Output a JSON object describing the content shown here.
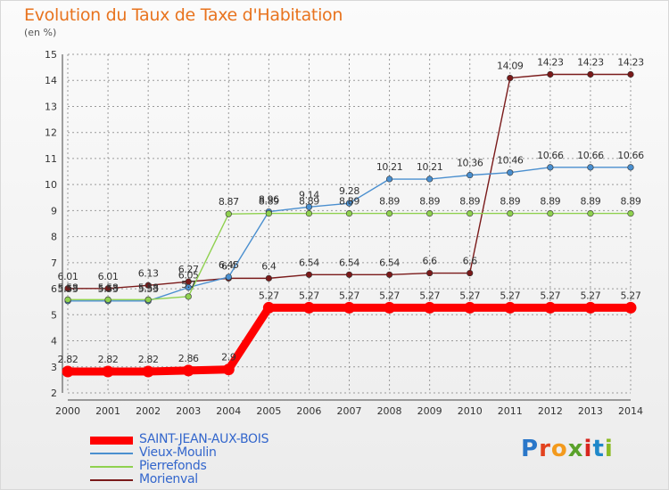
{
  "title": "Evolution du Taux de Taxe d'Habitation",
  "subtitle": "(en %)",
  "logo": {
    "text": "Proxiti"
  },
  "chart_data": {
    "type": "line",
    "title": "Evolution du Taux de Taxe d'Habitation",
    "ylabel": "(en %)",
    "xlabel": "",
    "ylim": [
      2,
      15
    ],
    "yticks": [
      2,
      3,
      4,
      5,
      6,
      7,
      8,
      9,
      10,
      11,
      12,
      13,
      14,
      15
    ],
    "x": [
      2000,
      2001,
      2002,
      2003,
      2004,
      2005,
      2006,
      2007,
      2008,
      2009,
      2010,
      2011,
      2012,
      2013,
      2014
    ],
    "grid": true,
    "legend_position": "bottom-left",
    "series": [
      {
        "name": "Morienval",
        "color": "#7a1a1a",
        "values": [
          6.01,
          6.01,
          6.13,
          6.27,
          6.4,
          6.4,
          6.54,
          6.54,
          6.54,
          6.6,
          6.6,
          14.09,
          14.23,
          14.23,
          14.23
        ],
        "labels": [
          "6.01",
          "6.01",
          "6.13",
          "6.27",
          "6.4",
          "6.4",
          "6.54",
          "6.54",
          "6.54",
          "6.6",
          "6.6",
          "14.09",
          "14.23",
          "14.23",
          "14.23"
        ]
      },
      {
        "name": "Vieux-Moulin",
        "color": "#4a8fcf",
        "values": [
          5.53,
          5.53,
          5.53,
          6.05,
          6.45,
          8.96,
          9.14,
          9.28,
          10.21,
          10.21,
          10.36,
          10.46,
          10.66,
          10.66,
          10.66
        ],
        "labels": [
          "5.53",
          "5.53",
          "5.53",
          "6.05",
          "6.45",
          "8.96",
          "9.14",
          "9.28",
          "10.21",
          "10.21",
          "10.36",
          "10.46",
          "10.66",
          "10.66",
          "10.66"
        ]
      },
      {
        "name": "Pierrefonds",
        "color": "#8fd14f",
        "values": [
          5.58,
          5.58,
          5.58,
          5.7,
          8.87,
          8.89,
          8.89,
          8.89,
          8.89,
          8.89,
          8.89,
          8.89,
          8.89,
          8.89,
          8.89
        ],
        "labels": [
          "5.58",
          "5.58",
          "5.58",
          "5.7",
          "8.87",
          "8.89",
          "8.89",
          "8.89",
          "8.89",
          "8.89",
          "8.89",
          "8.89",
          "8.89",
          "8.89",
          "8.89"
        ]
      },
      {
        "name": "SAINT-JEAN-AUX-BOIS",
        "color": "#ff0000",
        "values": [
          2.82,
          2.82,
          2.82,
          2.86,
          2.9,
          5.27,
          5.27,
          5.27,
          5.27,
          5.27,
          5.27,
          5.27,
          5.27,
          5.27,
          5.27
        ],
        "labels": [
          "2.82",
          "2.82",
          "2.82",
          "2.86",
          "2.9",
          "5.27",
          "5.27",
          "5.27",
          "5.27",
          "5.27",
          "5.27",
          "5.27",
          "5.27",
          "5.27",
          "5.27"
        ]
      }
    ]
  }
}
